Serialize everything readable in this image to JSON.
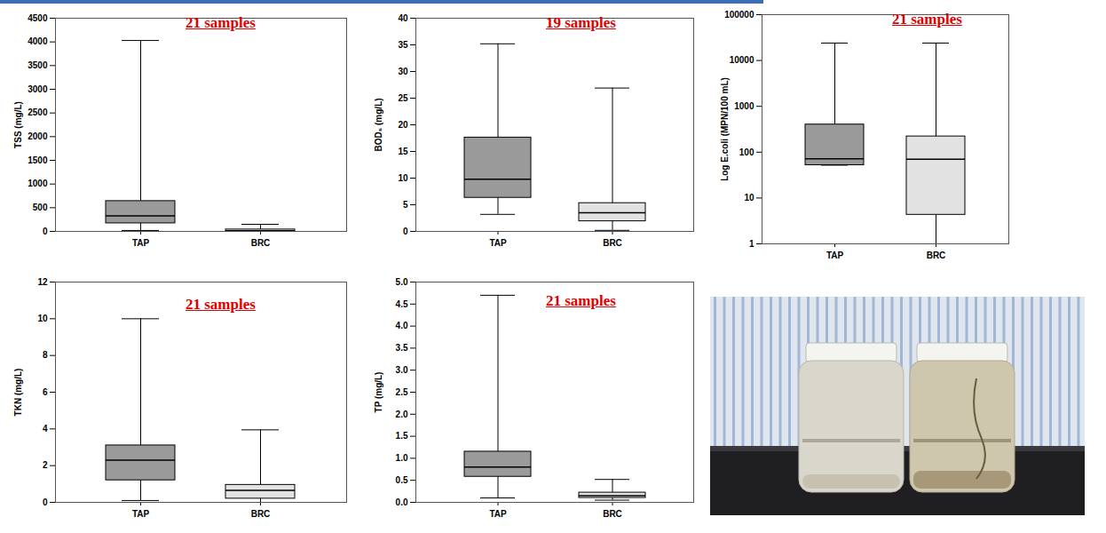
{
  "chart_data": [
    {
      "type": "box",
      "annotation": "21 samples",
      "y_label": "TSS (mg/L)",
      "categories": [
        "TAP",
        "BRC"
      ],
      "colors": [
        "#9a9a9a",
        "#e2e2e2"
      ],
      "min": [
        20,
        0
      ],
      "q1": [
        170,
        5
      ],
      "median": [
        330,
        15
      ],
      "q3": [
        640,
        40
      ],
      "max": [
        4030,
        150
      ],
      "ylim": [
        0,
        4500
      ],
      "yticks": [
        0,
        500,
        1000,
        1500,
        2000,
        2500,
        3000,
        3500,
        4000,
        4500
      ],
      "grid": false
    },
    {
      "type": "box",
      "annotation": "19 samples",
      "y_label": "BOD₅ (mg/L)",
      "categories": [
        "TAP",
        "BRC"
      ],
      "colors": [
        "#9a9a9a",
        "#e2e2e2"
      ],
      "min": [
        3.2,
        0.2
      ],
      "q1": [
        6.3,
        1.9
      ],
      "median": [
        9.8,
        3.5
      ],
      "q3": [
        17.6,
        5.3
      ],
      "max": [
        35.2,
        26.9
      ],
      "ylim": [
        0,
        40
      ],
      "yticks": [
        0,
        5,
        10,
        15,
        20,
        25,
        30,
        35,
        40
      ],
      "grid": false
    },
    {
      "type": "box",
      "annotation": "21 samples",
      "y_label": "Log E.coli (MPN/100 mL)",
      "categories": [
        "TAP",
        "BRC"
      ],
      "colors": [
        "#9a9a9a",
        "#e2e2e2"
      ],
      "min": [
        52,
        1
      ],
      "q1": [
        52,
        4.3
      ],
      "median": [
        72,
        70
      ],
      "q3": [
        400,
        220
      ],
      "max": [
        24000,
        24000
      ],
      "ylim": [
        1,
        100000
      ],
      "yticks": [
        1,
        10,
        100,
        1000,
        10000,
        100000
      ],
      "log": "y",
      "grid": false
    },
    {
      "type": "box",
      "annotation": "21 samples",
      "y_label": "TKN (mg/L)",
      "categories": [
        "TAP",
        "BRC"
      ],
      "colors": [
        "#9a9a9a",
        "#e2e2e2"
      ],
      "min": [
        0.1,
        0
      ],
      "q1": [
        1.2,
        0.2
      ],
      "median": [
        2.3,
        0.65
      ],
      "q3": [
        3.1,
        0.95
      ],
      "max": [
        10,
        3.95
      ],
      "ylim": [
        0,
        12
      ],
      "yticks": [
        0,
        2,
        4,
        6,
        8,
        10,
        12
      ],
      "grid": false
    },
    {
      "type": "box",
      "annotation": "21 samples",
      "y_label": "TP (mg/L)",
      "categories": [
        "TAP",
        "BRC"
      ],
      "colors": [
        "#9a9a9a",
        "#e2e2e2"
      ],
      "min": [
        0.1,
        0.05
      ],
      "q1": [
        0.58,
        0.1
      ],
      "median": [
        0.8,
        0.15
      ],
      "q3": [
        1.15,
        0.22
      ],
      "max": [
        4.7,
        0.52
      ],
      "ylim": [
        0,
        5
      ],
      "yticks": [
        {
          "value": 0,
          "label": "0.0"
        },
        0.5,
        {
          "value": 1,
          "label": "1.0"
        },
        1.5,
        {
          "value": 2,
          "label": "2.0"
        },
        2.5,
        {
          "value": 3,
          "label": "3.0"
        },
        3.5,
        {
          "value": 4,
          "label": "4.0"
        },
        4.5,
        {
          "value": 5,
          "label": "5.0"
        }
      ],
      "grid": false
    }
  ]
}
